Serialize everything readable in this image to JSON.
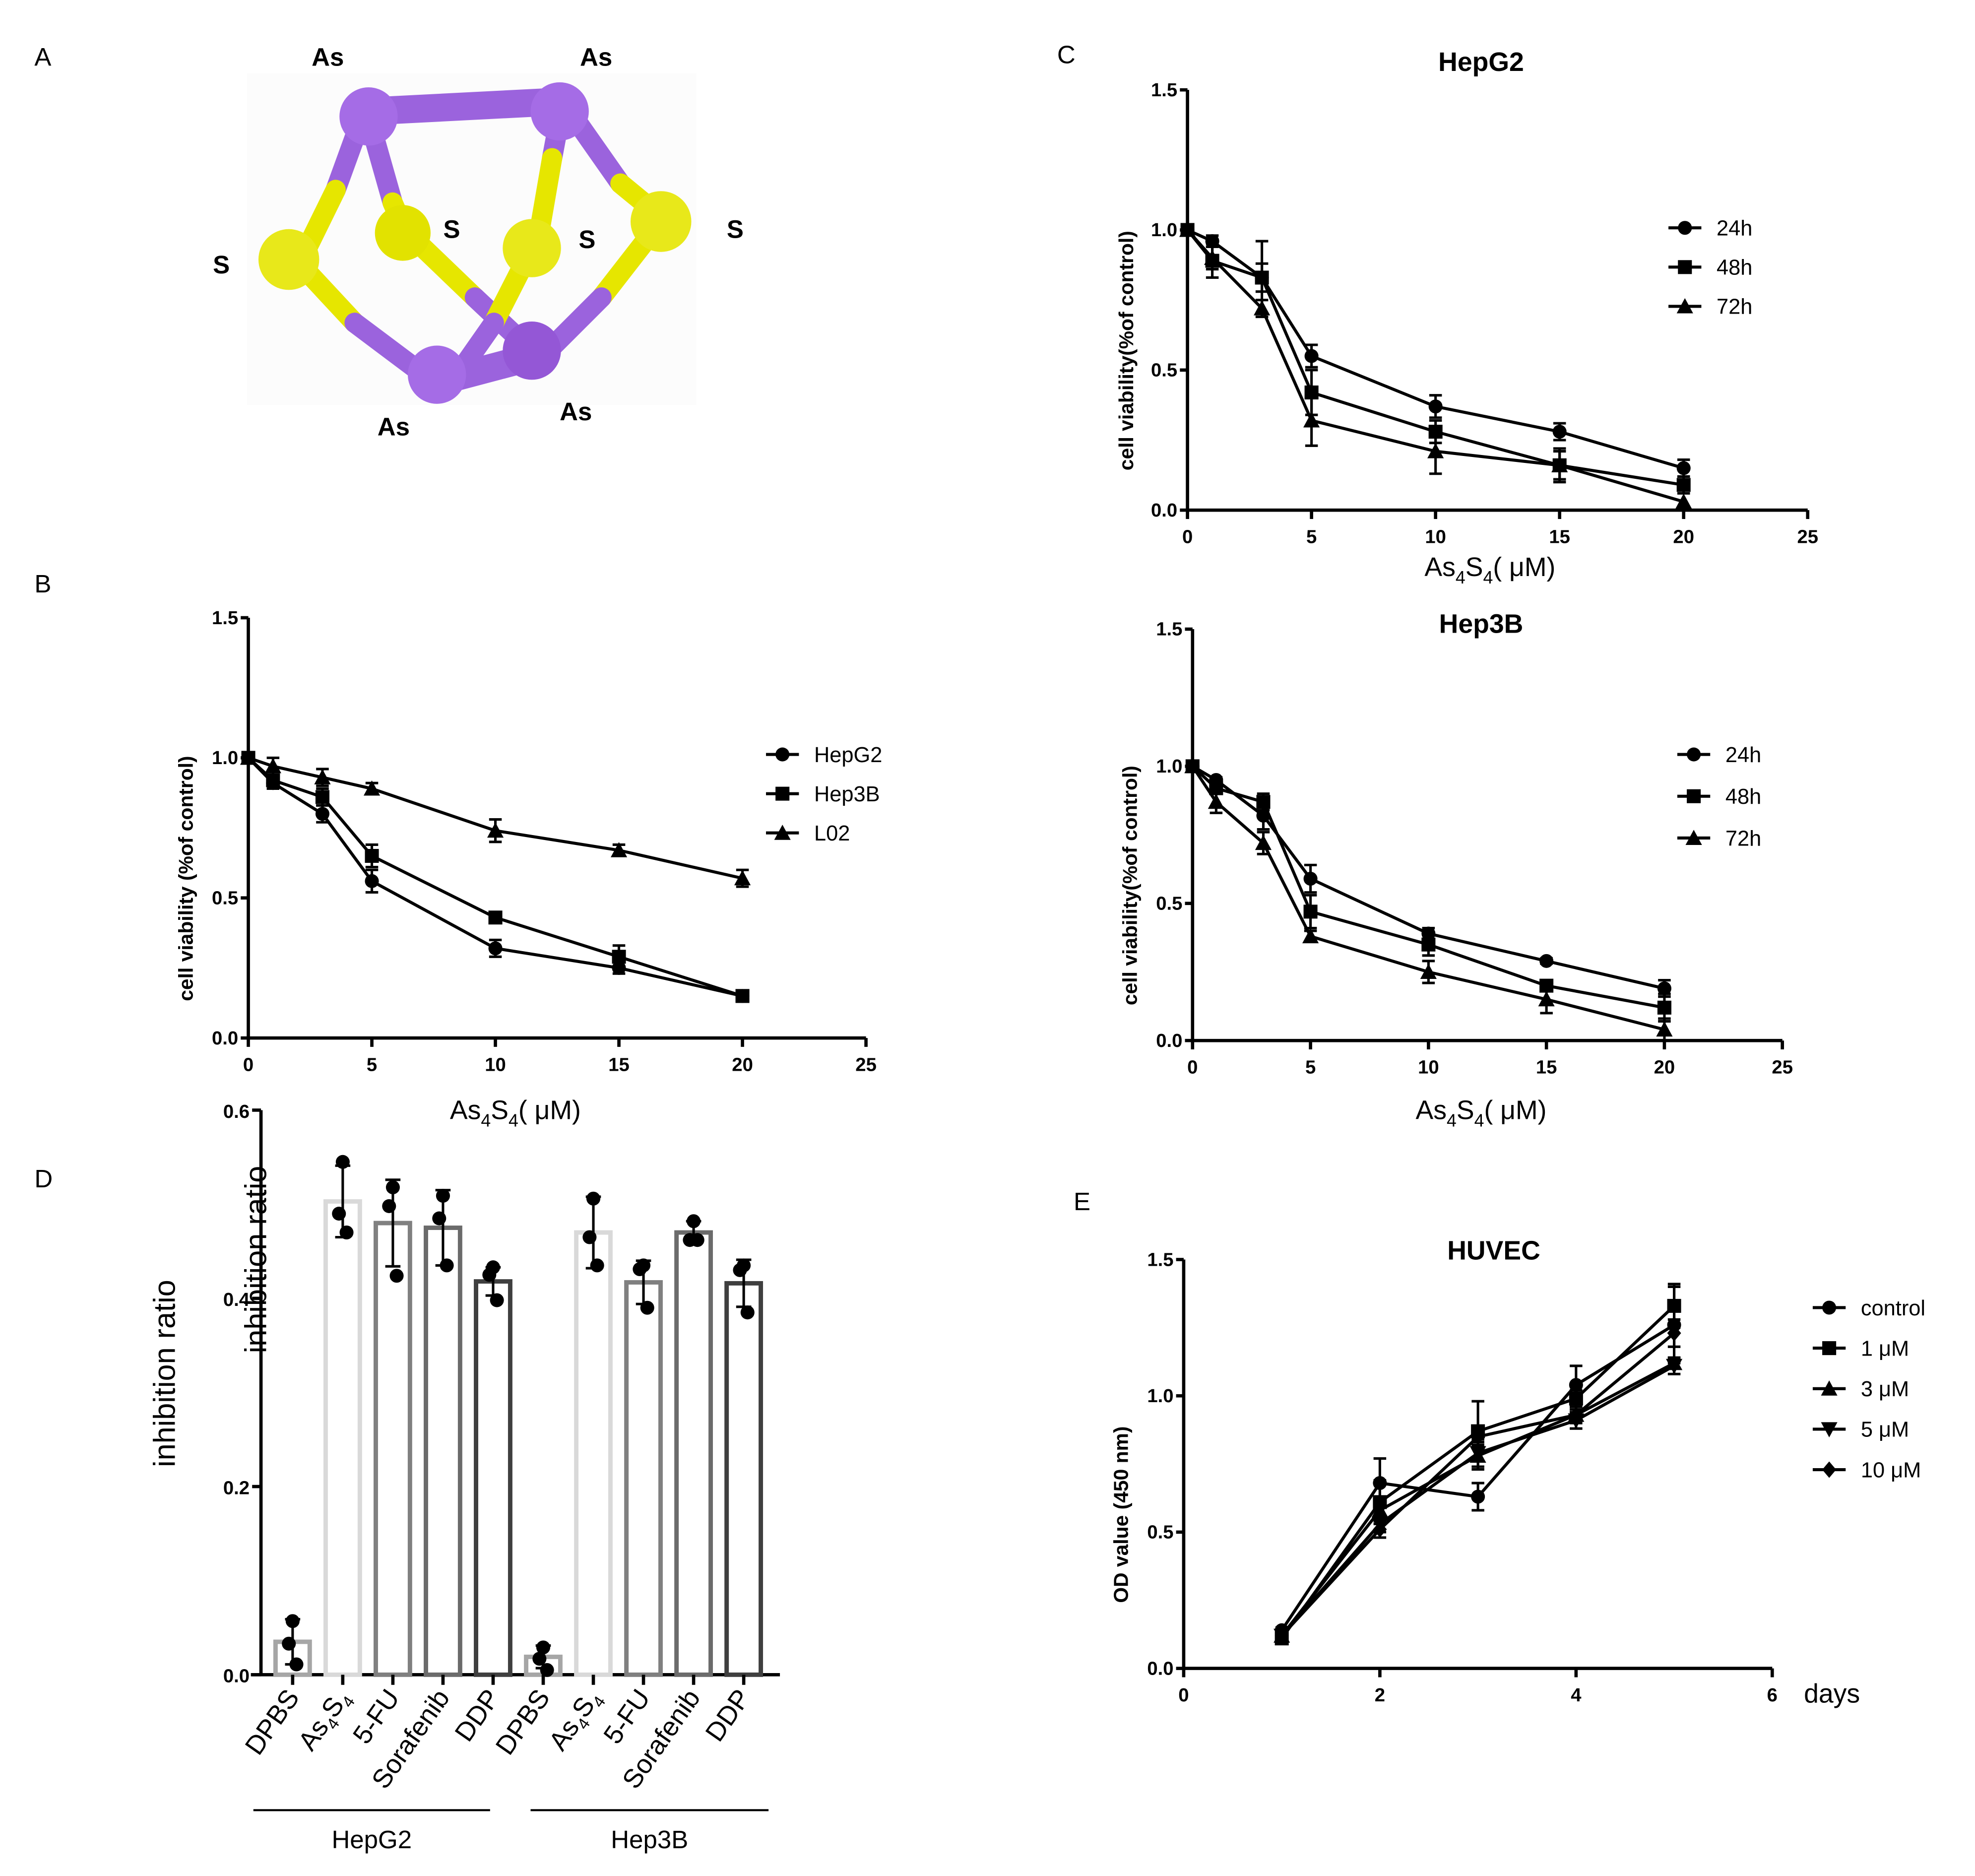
{
  "panels": {
    "A": {
      "label": "A",
      "atoms": [
        {
          "element": "As",
          "label": "As"
        },
        {
          "element": "As",
          "label": "As"
        },
        {
          "element": "As",
          "label": "As"
        },
        {
          "element": "As",
          "label": "As"
        },
        {
          "element": "S",
          "label": "S"
        },
        {
          "element": "S",
          "label": "S"
        },
        {
          "element": "S",
          "label": "S"
        },
        {
          "element": "S",
          "label": "S"
        }
      ],
      "colors": {
        "As": "#9b63dd",
        "S": "#e6e600"
      }
    },
    "B": {
      "label": "B"
    },
    "C": {
      "label": "C"
    },
    "D": {
      "label": "D"
    },
    "E": {
      "label": "E"
    }
  },
  "chart_data": [
    {
      "id": "B",
      "type": "line",
      "title": "",
      "xlabel": "As4S4( μM)",
      "xlabel_main": "As",
      "xlabel_sub1": "4",
      "xlabel_mid": "S",
      "xlabel_sub2": "4",
      "xlabel_tail": "( μM)",
      "ylabel": "cell viability (%of control)",
      "xlim": [
        0,
        25
      ],
      "ylim": [
        0,
        1.5
      ],
      "xticks": [
        0,
        5,
        10,
        15,
        20,
        25
      ],
      "yticks": [
        "0.0",
        "0.5",
        "1.0",
        "1.5"
      ],
      "x": [
        0,
        1,
        3,
        5,
        10,
        15,
        20
      ],
      "legend_position": "right",
      "series": [
        {
          "name": "HepG2",
          "marker": "circle",
          "values": [
            1.0,
            0.91,
            0.8,
            0.56,
            0.32,
            0.25,
            0.15
          ],
          "errors": [
            0.0,
            0.02,
            0.03,
            0.04,
            0.03,
            0.02,
            0.01
          ]
        },
        {
          "name": "Hep3B",
          "marker": "square",
          "values": [
            1.0,
            0.92,
            0.86,
            0.65,
            0.43,
            0.29,
            0.15
          ],
          "errors": [
            0.0,
            0.02,
            0.03,
            0.04,
            0.01,
            0.04,
            0.02
          ]
        },
        {
          "name": "L02",
          "marker": "triangle",
          "values": [
            1.0,
            0.97,
            0.93,
            0.89,
            0.74,
            0.67,
            0.57
          ],
          "errors": [
            0.0,
            0.03,
            0.03,
            0.02,
            0.04,
            0.02,
            0.03
          ]
        }
      ]
    },
    {
      "id": "C-HepG2",
      "type": "line",
      "title": "HepG2",
      "xlabel": "As4S4( μM)",
      "xlabel_main": "As",
      "xlabel_sub1": "4",
      "xlabel_mid": "S",
      "xlabel_sub2": "4",
      "xlabel_tail": "( μM)",
      "ylabel": "cell viability(%of control)",
      "xlim": [
        0,
        25
      ],
      "ylim": [
        0,
        1.5
      ],
      "xticks": [
        0,
        5,
        10,
        15,
        20,
        25
      ],
      "yticks": [
        "0.0",
        "0.5",
        "1.0",
        "1.5"
      ],
      "x": [
        0,
        1,
        3,
        5,
        10,
        15,
        20
      ],
      "legend_position": "right",
      "series": [
        {
          "name": "24h",
          "marker": "circle",
          "values": [
            1.0,
            0.96,
            0.83,
            0.55,
            0.37,
            0.28,
            0.15
          ],
          "errors": [
            0.0,
            0.02,
            0.05,
            0.04,
            0.04,
            0.03,
            0.03
          ]
        },
        {
          "name": "48h",
          "marker": "square",
          "values": [
            1.0,
            0.89,
            0.83,
            0.42,
            0.28,
            0.16,
            0.09
          ],
          "errors": [
            0.0,
            0.06,
            0.13,
            0.08,
            0.04,
            0.06,
            0.03
          ]
        },
        {
          "name": "72h",
          "marker": "triangle",
          "values": [
            1.0,
            0.9,
            0.72,
            0.32,
            0.21,
            0.16,
            0.03
          ],
          "errors": [
            0.0,
            0.04,
            0.03,
            0.09,
            0.08,
            0.05,
            0.0
          ]
        }
      ]
    },
    {
      "id": "C-Hep3B",
      "type": "line",
      "title": "Hep3B",
      "xlabel": "As4S4( μM)",
      "xlabel_main": "As",
      "xlabel_sub1": "4",
      "xlabel_mid": "S",
      "xlabel_sub2": "4",
      "xlabel_tail": "( μM)",
      "ylabel": "cell viability(%of control)",
      "xlim": [
        0,
        25
      ],
      "ylim": [
        0,
        1.5
      ],
      "xticks": [
        0,
        5,
        10,
        15,
        20,
        25
      ],
      "yticks": [
        "0.0",
        "0.5",
        "1.0",
        "1.5"
      ],
      "x": [
        0,
        1,
        3,
        5,
        10,
        15,
        20
      ],
      "legend_position": "right",
      "series": [
        {
          "name": "24h",
          "marker": "circle",
          "values": [
            1.0,
            0.95,
            0.82,
            0.59,
            0.39,
            0.29,
            0.19
          ],
          "errors": [
            0.0,
            0.01,
            0.05,
            0.05,
            0.02,
            0.01,
            0.03
          ]
        },
        {
          "name": "48h",
          "marker": "square",
          "values": [
            1.0,
            0.92,
            0.87,
            0.47,
            0.35,
            0.2,
            0.12
          ],
          "errors": [
            0.0,
            0.02,
            0.03,
            0.06,
            0.04,
            0.02,
            0.05
          ]
        },
        {
          "name": "72h",
          "marker": "triangle",
          "values": [
            1.0,
            0.87,
            0.72,
            0.38,
            0.25,
            0.15,
            0.04
          ],
          "errors": [
            0.0,
            0.04,
            0.04,
            0.02,
            0.04,
            0.05,
            0.04
          ]
        }
      ]
    },
    {
      "id": "D",
      "type": "bar",
      "title": "",
      "ylabel": "inhibition ratio",
      "ylabel_overlay": "inhibition ratio",
      "ylim": [
        0,
        0.6
      ],
      "yticks": [
        "0.0",
        "0.2",
        "0.4",
        "0.6"
      ],
      "categories": [
        "DPBS",
        "As4S4",
        "5-FU",
        "Sorafenib",
        "DDP",
        "DPBS",
        "As4S4",
        "5-FU",
        "Sorafenib",
        "DDP"
      ],
      "groups": [
        {
          "name": "HepG2",
          "categories": [
            "DPBS",
            "As4S4",
            "5-FU",
            "Sorafenib",
            "DDP"
          ]
        },
        {
          "name": "Hep3B",
          "categories": [
            "DPBS",
            "As4S4",
            "5-FU",
            "Sorafenib",
            "DDP"
          ]
        }
      ],
      "values": [
        0.035,
        0.503,
        0.48,
        0.475,
        0.418,
        0.019,
        0.47,
        0.417,
        0.47,
        0.416
      ],
      "errors": [
        0.024,
        0.038,
        0.046,
        0.04,
        0.015,
        0.012,
        0.038,
        0.023,
        0.012,
        0.025
      ],
      "points": [
        [
          0.057,
          0.033,
          0.011
        ],
        [
          0.545,
          0.49,
          0.47
        ],
        [
          0.518,
          0.498,
          0.424
        ],
        [
          0.509,
          0.485,
          0.435
        ],
        [
          0.433,
          0.425,
          0.398
        ],
        [
          0.029,
          0.017,
          0.005
        ],
        [
          0.506,
          0.465,
          0.435
        ],
        [
          0.435,
          0.431,
          0.39
        ],
        [
          0.482,
          0.462,
          0.462
        ],
        [
          0.435,
          0.43,
          0.385
        ]
      ],
      "bar_colors": [
        "#a6a6a6",
        "#d9d9d9",
        "#808080",
        "#6b6b6b",
        "#3f3f3f",
        "#a6a6a6",
        "#d9d9d9",
        "#808080",
        "#6b6b6b",
        "#3f3f3f"
      ],
      "stray_label": "As4S4( μM)"
    },
    {
      "id": "E",
      "type": "line",
      "title": "HUVEC",
      "xlabel": "days",
      "ylabel": "OD value (450 nm)",
      "xlim": [
        0,
        6
      ],
      "ylim": [
        0,
        1.5
      ],
      "xticks": [
        0,
        2,
        4,
        6
      ],
      "yticks": [
        "0.0",
        "0.5",
        "1.0",
        "1.5"
      ],
      "x": [
        1,
        2,
        3,
        4,
        5
      ],
      "legend_position": "right",
      "series": [
        {
          "name": "control",
          "marker": "circle",
          "values": [
            0.14,
            0.68,
            0.63,
            1.04,
            1.26
          ],
          "errors": [
            0.01,
            0.09,
            0.05,
            0.07,
            0.14
          ]
        },
        {
          "name": "1 μM",
          "marker": "square",
          "values": [
            0.11,
            0.61,
            0.87,
            0.99,
            1.33
          ],
          "errors": [
            0.01,
            0.08,
            0.11,
            0.03,
            0.08
          ]
        },
        {
          "name": "3 μM",
          "marker": "triangle",
          "values": [
            0.12,
            0.58,
            0.78,
            0.93,
            1.12
          ],
          "errors": [
            0.01,
            0.03,
            0.05,
            0.02,
            0.02
          ]
        },
        {
          "name": "5 μM",
          "marker": "triangle-down",
          "values": [
            0.12,
            0.53,
            0.79,
            0.91,
            1.11
          ],
          "errors": [
            0.01,
            0.03,
            0.05,
            0.03,
            0.03
          ]
        },
        {
          "name": "10 μM",
          "marker": "diamond",
          "values": [
            0.12,
            0.51,
            0.85,
            0.93,
            1.23
          ],
          "errors": [
            0.01,
            0.03,
            0.03,
            0.03,
            0.05
          ]
        }
      ]
    }
  ]
}
